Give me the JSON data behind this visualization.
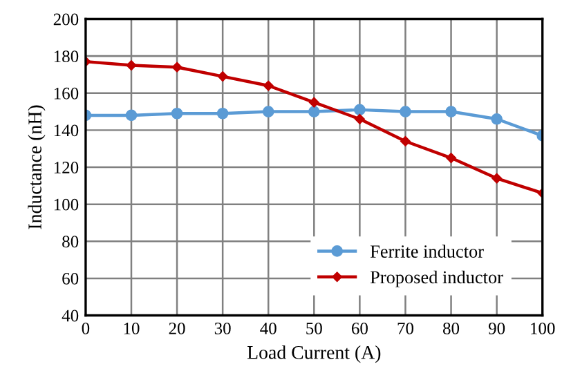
{
  "chart_data": {
    "type": "line",
    "xlabel": "Load Current (A)",
    "ylabel": "Inductance (nH)",
    "x": [
      0,
      10,
      20,
      30,
      40,
      50,
      60,
      70,
      80,
      90,
      100
    ],
    "series": [
      {
        "name": "Ferrite inductor",
        "color": "#5b9bd5",
        "marker": "circle",
        "values": [
          148,
          148,
          149,
          149,
          150,
          150,
          151,
          150,
          150,
          146,
          137
        ]
      },
      {
        "name": "Proposed inductor",
        "color": "#c00000",
        "marker": "diamond",
        "values": [
          177,
          175,
          174,
          169,
          164,
          155,
          146,
          134,
          125,
          114,
          106
        ]
      }
    ],
    "xlim": [
      0,
      100
    ],
    "xticks": [
      0,
      10,
      20,
      30,
      40,
      50,
      60,
      70,
      80,
      90,
      100
    ],
    "ylim": [
      40,
      200
    ],
    "yticks": [
      40,
      60,
      80,
      100,
      120,
      140,
      160,
      180,
      200
    ],
    "grid": true,
    "legend": "lower right",
    "line_style": "solid"
  }
}
